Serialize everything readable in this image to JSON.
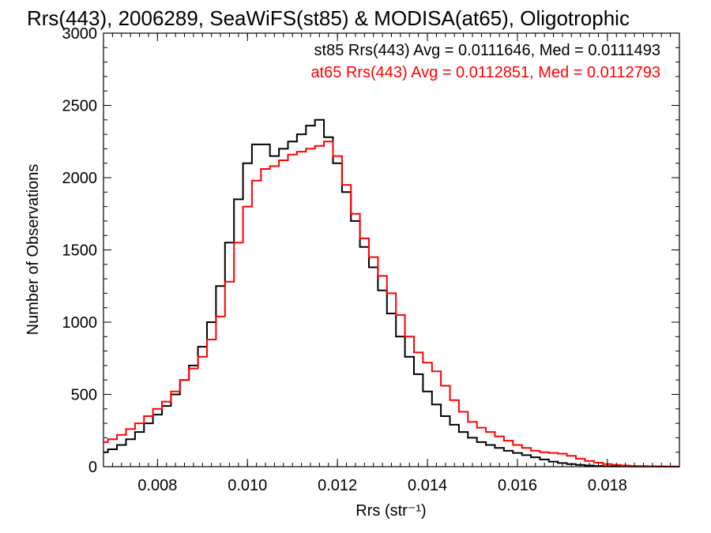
{
  "chart_data": {
    "type": "line",
    "title": "Rrs(443), 2006289, SeaWiFS(st85) & MODISA(at65), Oligotrophic",
    "xlabel": "Rrs (str⁻¹)",
    "ylabel": "Number of Observations",
    "xlim": [
      0.0068,
      0.0196
    ],
    "ylim": [
      0,
      3000
    ],
    "x_ticks": [
      "0.008",
      "0.010",
      "0.012",
      "0.014",
      "0.016",
      "0.018"
    ],
    "y_ticks": [
      "0",
      "500",
      "1000",
      "1500",
      "2000",
      "2500",
      "3000"
    ],
    "grid": false,
    "annotations": [
      {
        "text": "st85 Rrs(443) Avg = 0.0111646, Med = 0.0111493",
        "color": "#000000"
      },
      {
        "text": "at65 Rrs(443) Avg = 0.0112851, Med = 0.0112793",
        "color": "#ff0000"
      }
    ],
    "series": [
      {
        "name": "st85",
        "color": "#000000",
        "x": [
          0.0068,
          0.007,
          0.0072,
          0.0074,
          0.0076,
          0.0078,
          0.008,
          0.0082,
          0.0084,
          0.0086,
          0.0088,
          0.009,
          0.0092,
          0.0094,
          0.0096,
          0.0098,
          0.01,
          0.0102,
          0.0104,
          0.0106,
          0.0108,
          0.011,
          0.0112,
          0.0114,
          0.0116,
          0.0118,
          0.012,
          0.0122,
          0.0124,
          0.0126,
          0.0128,
          0.013,
          0.0132,
          0.0134,
          0.0136,
          0.0138,
          0.014,
          0.0142,
          0.0144,
          0.0146,
          0.0148,
          0.015,
          0.0152,
          0.0154,
          0.0156,
          0.0158,
          0.016,
          0.0162,
          0.0164,
          0.0166,
          0.0168,
          0.017,
          0.0172,
          0.0174,
          0.0176,
          0.0178,
          0.018,
          0.0182,
          0.0184,
          0.0186,
          0.0188,
          0.019,
          0.0192,
          0.0194,
          0.0196
        ],
        "values": [
          100,
          120,
          150,
          190,
          240,
          300,
          360,
          420,
          500,
          600,
          700,
          830,
          1000,
          1250,
          1550,
          1850,
          2100,
          2230,
          2230,
          2150,
          2200,
          2250,
          2300,
          2360,
          2400,
          2280,
          2100,
          1900,
          1700,
          1520,
          1380,
          1220,
          1060,
          900,
          760,
          640,
          520,
          430,
          350,
          290,
          240,
          200,
          170,
          150,
          130,
          110,
          95,
          80,
          65,
          50,
          35,
          25,
          18,
          12,
          8,
          5,
          3,
          2,
          2,
          1,
          1,
          1,
          0,
          0,
          0
        ]
      },
      {
        "name": "at65",
        "color": "#ff0000",
        "x": [
          0.0068,
          0.007,
          0.0072,
          0.0074,
          0.0076,
          0.0078,
          0.008,
          0.0082,
          0.0084,
          0.0086,
          0.0088,
          0.009,
          0.0092,
          0.0094,
          0.0096,
          0.0098,
          0.01,
          0.0102,
          0.0104,
          0.0106,
          0.0108,
          0.011,
          0.0112,
          0.0114,
          0.0116,
          0.0118,
          0.012,
          0.0122,
          0.0124,
          0.0126,
          0.0128,
          0.013,
          0.0132,
          0.0134,
          0.0136,
          0.0138,
          0.014,
          0.0142,
          0.0144,
          0.0146,
          0.0148,
          0.015,
          0.0152,
          0.0154,
          0.0156,
          0.0158,
          0.016,
          0.0162,
          0.0164,
          0.0166,
          0.0168,
          0.017,
          0.0172,
          0.0174,
          0.0176,
          0.0178,
          0.018,
          0.0182,
          0.0184,
          0.0186,
          0.0188,
          0.019,
          0.0192,
          0.0194,
          0.0196
        ],
        "values": [
          170,
          190,
          220,
          260,
          300,
          350,
          400,
          450,
          520,
          600,
          680,
          760,
          880,
          1040,
          1280,
          1550,
          1800,
          1980,
          2060,
          2080,
          2120,
          2160,
          2180,
          2200,
          2220,
          2250,
          2150,
          1950,
          1750,
          1580,
          1450,
          1320,
          1200,
          1050,
          900,
          790,
          720,
          660,
          560,
          460,
          380,
          310,
          270,
          240,
          210,
          180,
          150,
          130,
          110,
          100,
          95,
          90,
          75,
          55,
          40,
          28,
          18,
          12,
          8,
          5,
          4,
          3,
          2,
          1,
          1
        ]
      }
    ]
  }
}
